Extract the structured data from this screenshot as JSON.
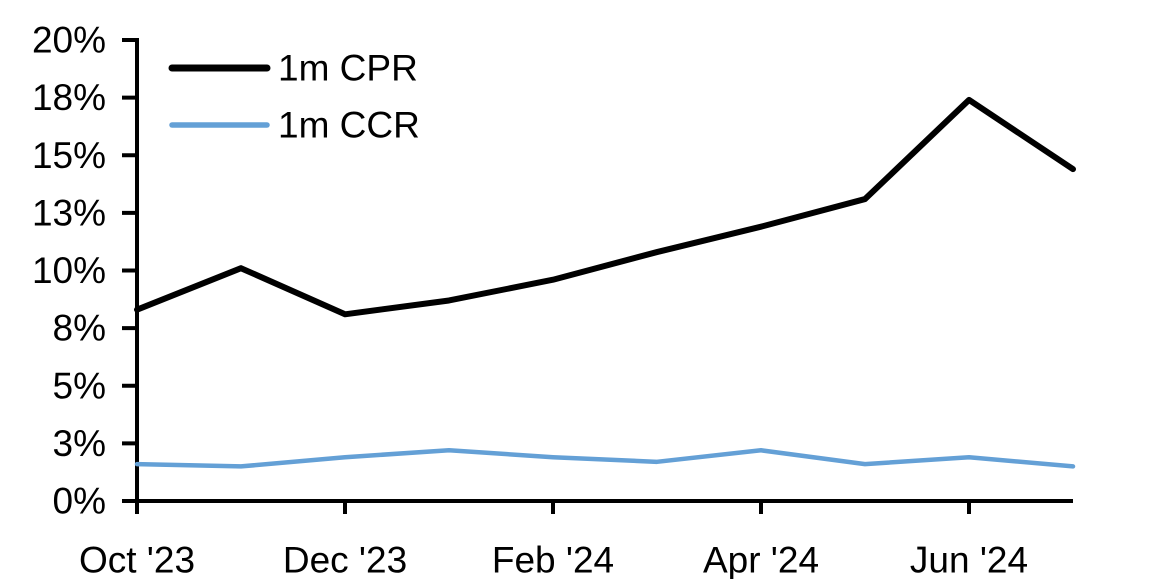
{
  "chart_data": {
    "type": "line",
    "title": "",
    "xlabel": "",
    "ylabel": "",
    "grid": false,
    "background_color": "#FFFFFF",
    "axis_color": "#000000",
    "text_color": "#000000",
    "categories": [
      "Oct '23",
      "Nov '23",
      "Dec '23",
      "Jan '24",
      "Feb '24",
      "Mar '24",
      "Apr '24",
      "May '24",
      "Jun '24",
      "Jul '24"
    ],
    "series": [
      {
        "name": "1m CPR",
        "color": "#000000",
        "stroke_width": 6,
        "values": [
          8.3,
          10.1,
          8.1,
          8.7,
          9.6,
          10.8,
          11.9,
          13.1,
          17.4,
          14.4
        ]
      },
      {
        "name": "1m CCR",
        "color": "#64A0D6",
        "stroke_width": 4.5,
        "values": [
          1.6,
          1.5,
          1.9,
          2.2,
          1.9,
          1.7,
          2.2,
          1.6,
          1.9,
          1.5
        ]
      }
    ],
    "y_axis": {
      "min": 0,
      "max": 20,
      "tick_step": 2.5,
      "unit": "%",
      "tick_labels": [
        "0%",
        "3%",
        "5%",
        "8%",
        "10%",
        "13%",
        "15%",
        "18%",
        "20%"
      ]
    },
    "x_axis": {
      "tick_labels": [
        {
          "index": 0,
          "label": "Oct '23"
        },
        {
          "index": 2,
          "label": "Dec '23"
        },
        {
          "index": 4,
          "label": "Feb '24"
        },
        {
          "index": 6,
          "label": "Apr '24"
        },
        {
          "index": 8,
          "label": "Jun '24"
        }
      ]
    },
    "legend": {
      "position": "top-left",
      "entries": [
        "1m CPR",
        "1m CCR"
      ]
    }
  }
}
